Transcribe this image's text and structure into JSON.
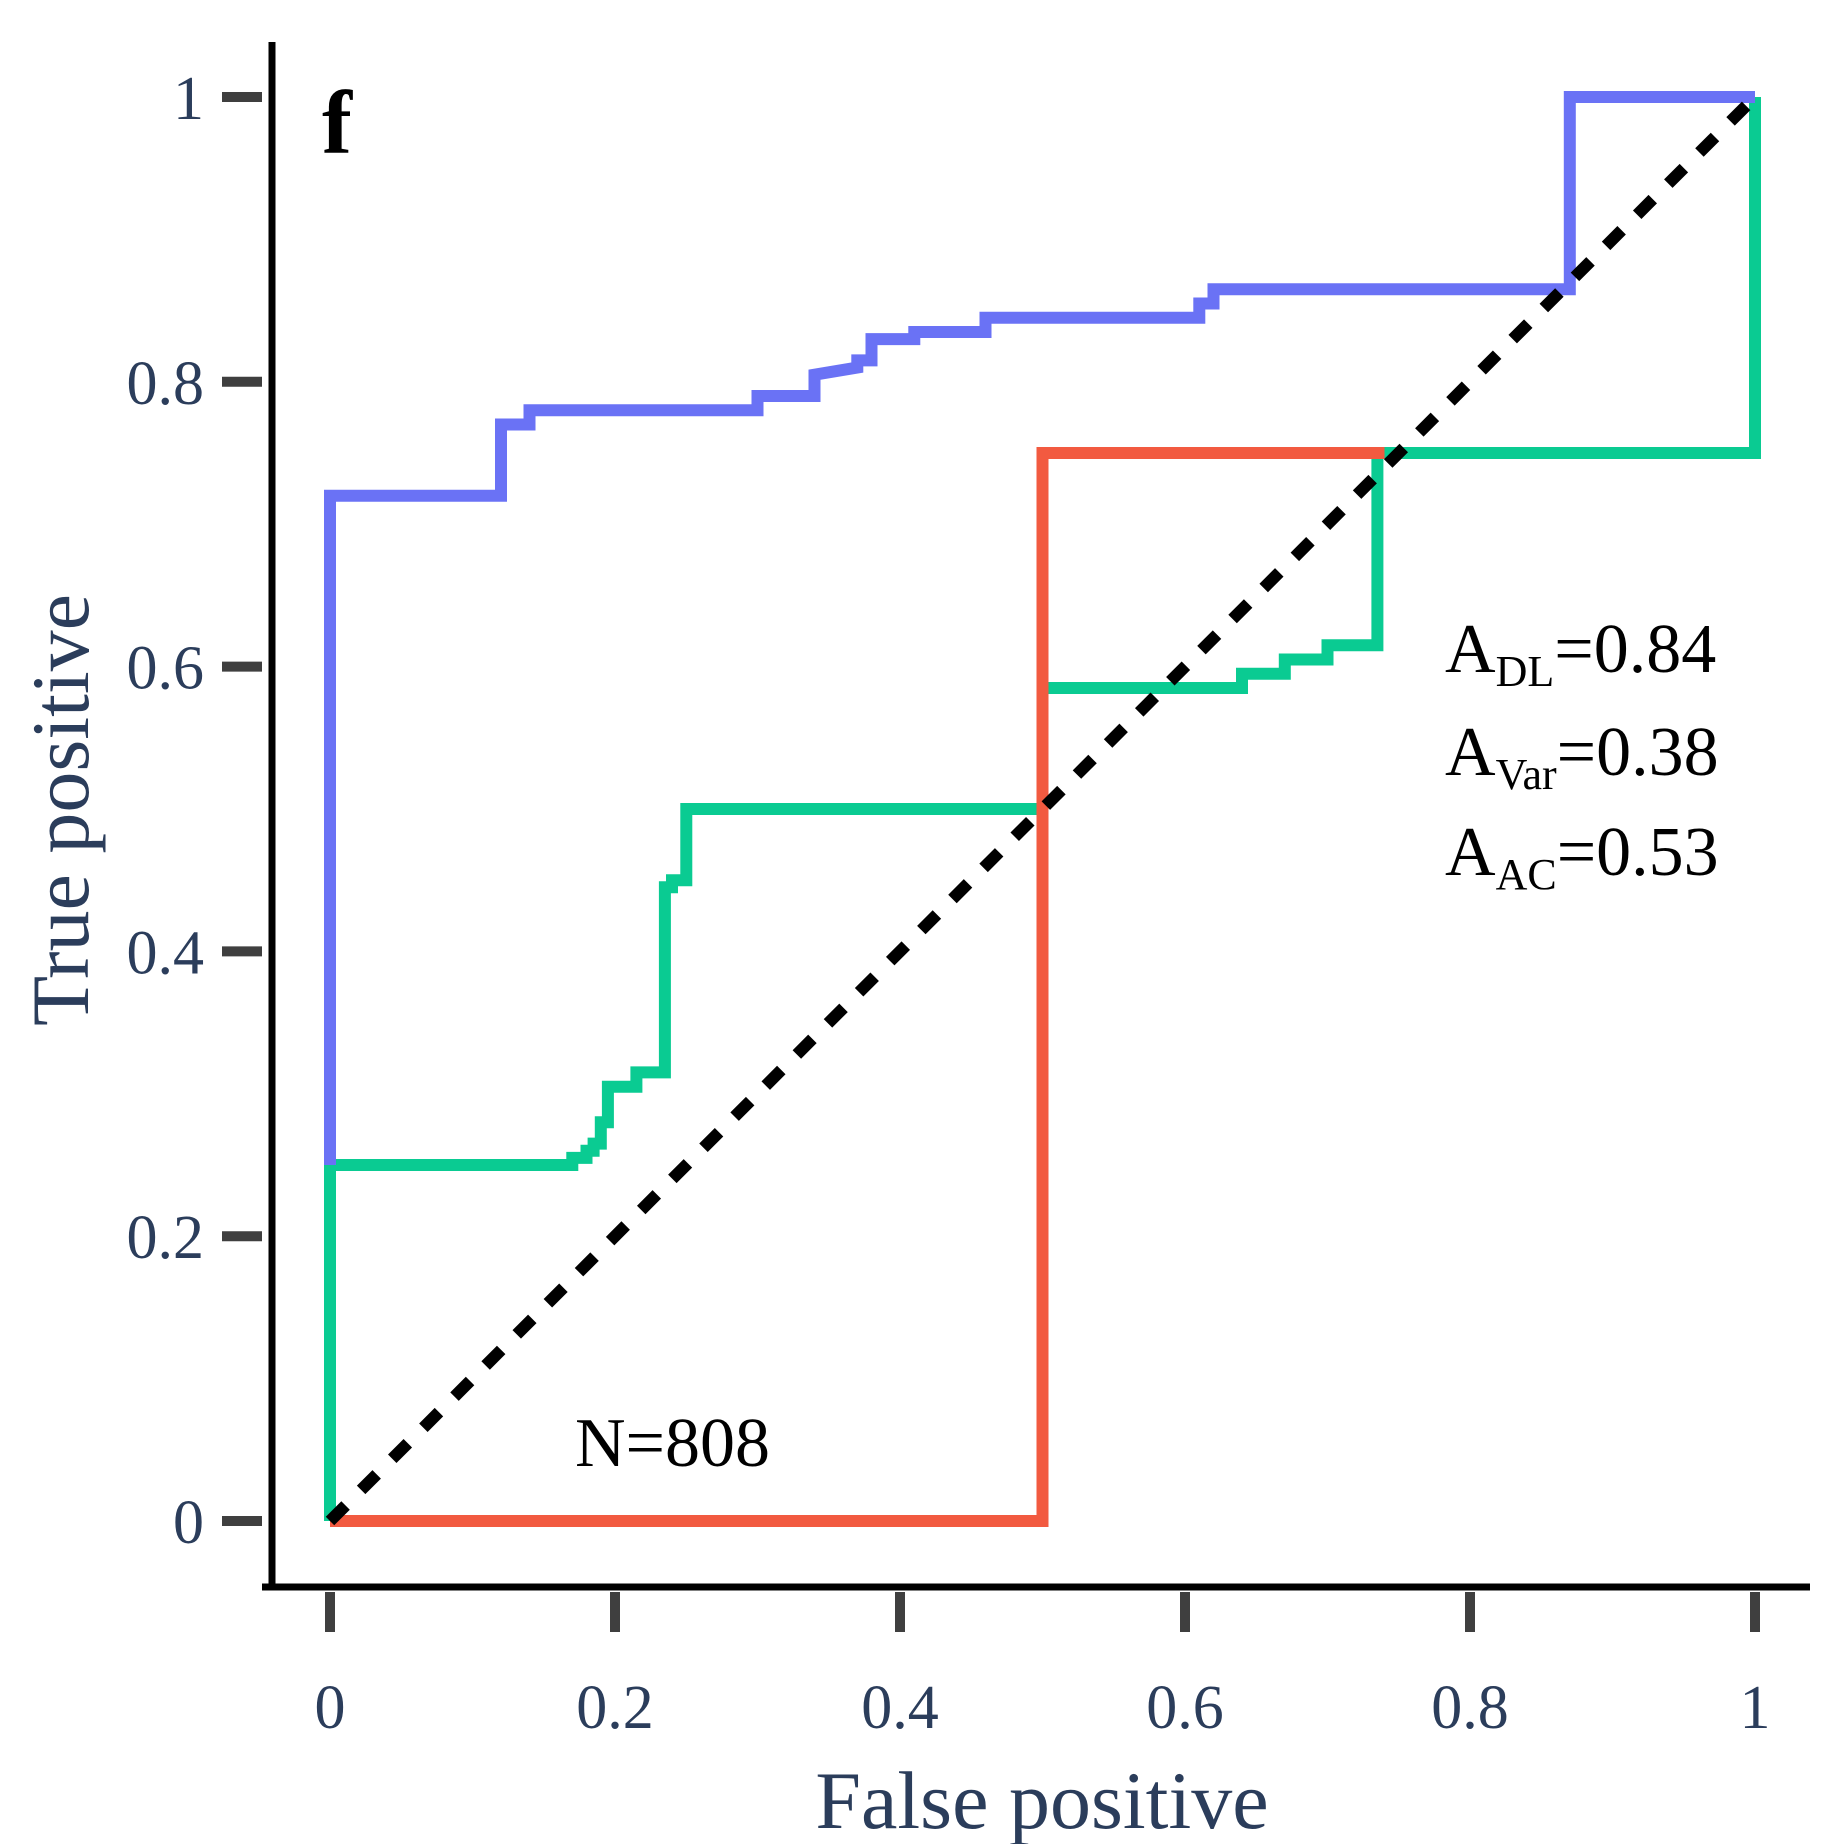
{
  "chart_data": {
    "type": "line",
    "panel_label": "f",
    "xlabel": "False positive",
    "ylabel": "True positive",
    "xlim": [
      0,
      1
    ],
    "ylim": [
      0,
      1
    ],
    "xticks": [
      0,
      0.2,
      0.4,
      0.6,
      0.8,
      1
    ],
    "yticks": [
      0,
      0.2,
      0.4,
      0.6,
      0.8,
      1
    ],
    "xtick_labels": [
      "0",
      "0.2",
      "0.4",
      "0.6",
      "0.8",
      "1"
    ],
    "ytick_labels": [
      "0",
      "0.2",
      "0.4",
      "0.6",
      "0.8",
      "1"
    ],
    "grid": false,
    "colors": {
      "dl": "#6a72f5",
      "var": "#f25a40",
      "ac": "#0acb92",
      "reference": "#000000",
      "axis": "#000000",
      "ticks": "#3f3f3f"
    },
    "series": [
      {
        "key": "dl",
        "x": [
          0,
          0,
          0.12,
          0.12,
          0.14,
          0.14,
          0.3,
          0.3,
          0.34,
          0.34,
          0.37,
          0.37,
          0.38,
          0.38,
          0.41,
          0.41,
          0.46,
          0.46,
          0.61,
          0.61,
          0.62,
          0.62,
          0.87,
          0.87,
          1
        ],
        "y": [
          0.25,
          0.72,
          0.72,
          0.77,
          0.77,
          0.78,
          0.78,
          0.79,
          0.79,
          0.805,
          0.81,
          0.815,
          0.815,
          0.83,
          0.83,
          0.835,
          0.835,
          0.845,
          0.845,
          0.855,
          0.855,
          0.865,
          0.865,
          1.0,
          1.0
        ]
      },
      {
        "key": "var",
        "x": [
          0,
          0.5,
          0.5,
          0.74
        ],
        "y": [
          0,
          0,
          0.75,
          0.75
        ]
      },
      {
        "key": "ac",
        "x": [
          0,
          0,
          0.17,
          0.17,
          0.18,
          0.18,
          0.185,
          0.185,
          0.19,
          0.19,
          0.195,
          0.195,
          0.215,
          0.215,
          0.235,
          0.235,
          0.24,
          0.24,
          0.25,
          0.25,
          0.5,
          0.5,
          0.64,
          0.64,
          0.67,
          0.67,
          0.7,
          0.7,
          0.735,
          0.735,
          1,
          1
        ],
        "y": [
          0,
          0.25,
          0.25,
          0.255,
          0.255,
          0.26,
          0.26,
          0.265,
          0.265,
          0.28,
          0.28,
          0.305,
          0.305,
          0.315,
          0.315,
          0.445,
          0.445,
          0.45,
          0.45,
          0.5,
          0.5,
          0.585,
          0.585,
          0.595,
          0.595,
          0.605,
          0.605,
          0.615,
          0.615,
          0.75,
          0.75,
          1.0
        ]
      }
    ],
    "reference_line": {
      "x": [
        0,
        1
      ],
      "y": [
        0,
        1
      ]
    },
    "annotations": {
      "auc": [
        {
          "base": "A",
          "sub": "DL",
          "value": "=0.84"
        },
        {
          "base": "A",
          "sub": "Var",
          "value": "=0.38"
        },
        {
          "base": "A",
          "sub": "AC",
          "value": "=0.53"
        }
      ],
      "sample_size": "N=808"
    }
  }
}
